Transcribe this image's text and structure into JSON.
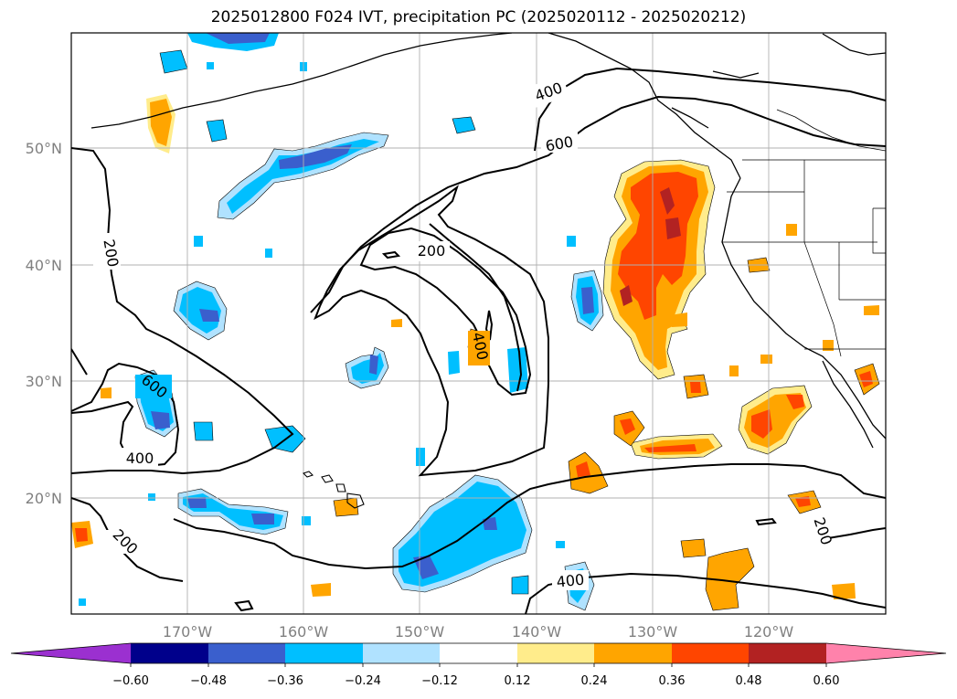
{
  "title": "2025012800 F024 IVT, precipitation PC (2025020112 - 2025020212)",
  "axes": {
    "lat_ticks": [
      "50°N",
      "40°N",
      "30°N",
      "20°N"
    ],
    "lon_ticks": [
      "170°W",
      "160°W",
      "150°W",
      "140°W",
      "130°W",
      "120°W"
    ]
  },
  "ivt_contour_labels": [
    "200",
    "400",
    "600",
    "200",
    "400",
    "600",
    "400",
    "200",
    "400",
    "200"
  ],
  "colorbar": {
    "ticks": [
      "−0.60",
      "−0.48",
      "−0.36",
      "−0.24",
      "−0.12",
      "0.12",
      "0.24",
      "0.36",
      "0.48",
      "0.60"
    ],
    "colors": [
      "#9b30d0",
      "#00008b",
      "#3a5fcd",
      "#00bfff",
      "#b0e2ff",
      "#ffffff",
      "#ffec8b",
      "#ffa500",
      "#ff4500",
      "#b22222",
      "#ff82ab"
    ]
  },
  "colors": {
    "pos_light": "#ffec8b",
    "pos_mid": "#ffa500",
    "pos_high": "#ff4500",
    "pos_max": "#b22222",
    "neg_light": "#b0e2ff",
    "neg_mid": "#00bfff",
    "neg_high": "#3a5fcd",
    "neg_max": "#00008b"
  }
}
